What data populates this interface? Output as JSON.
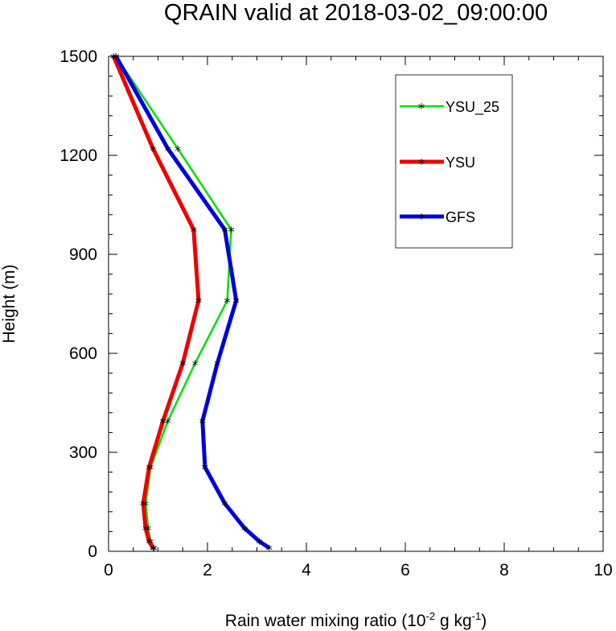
{
  "title": "QRAIN valid at 2018-03-02_09:00:00",
  "chart_data": {
    "type": "line",
    "title": "QRAIN valid at 2018-03-02_09:00:00",
    "xlabel_prefix": "Rain water mixing ratio (10",
    "xlabel_exp1": "-2",
    "xlabel_mid": " g kg",
    "xlabel_exp2": "-1",
    "xlabel_suffix": ")",
    "ylabel": "Height (m)",
    "xlim": [
      0,
      10
    ],
    "ylim": [
      0,
      1500
    ],
    "x_ticks": [
      0,
      2,
      4,
      6,
      8,
      10
    ],
    "y_ticks": [
      0,
      300,
      600,
      900,
      1200,
      1500
    ],
    "x_tick_labels": [
      "0",
      "2",
      "4",
      "6",
      "8",
      "10"
    ],
    "y_tick_labels": [
      "0",
      "300",
      "600",
      "900",
      "1200",
      "1500"
    ],
    "grid": false,
    "legend_position": "top-right",
    "series": [
      {
        "name": "YSU_25",
        "color": "#00e000",
        "marker": "asterisk",
        "x": [
          0.92,
          0.85,
          0.8,
          0.75,
          0.85,
          1.2,
          1.75,
          2.4,
          2.48,
          1.4,
          0.15
        ],
        "y": [
          10,
          30,
          70,
          145,
          255,
          395,
          570,
          760,
          975,
          1220,
          1500
        ]
      },
      {
        "name": "YSU",
        "color": "#ee0000",
        "marker": "asterisk",
        "x": [
          0.9,
          0.82,
          0.75,
          0.7,
          0.82,
          1.1,
          1.5,
          1.82,
          1.72,
          0.9,
          0.1
        ],
        "y": [
          10,
          30,
          70,
          145,
          255,
          395,
          570,
          760,
          975,
          1220,
          1500
        ]
      },
      {
        "name": "GFS",
        "color": "#0000dd",
        "marker": "asterisk",
        "x": [
          3.25,
          3.05,
          2.75,
          2.35,
          1.95,
          1.9,
          2.2,
          2.58,
          2.35,
          1.2,
          0.15
        ],
        "y": [
          10,
          30,
          70,
          145,
          255,
          395,
          570,
          760,
          975,
          1220,
          1500
        ]
      }
    ]
  }
}
